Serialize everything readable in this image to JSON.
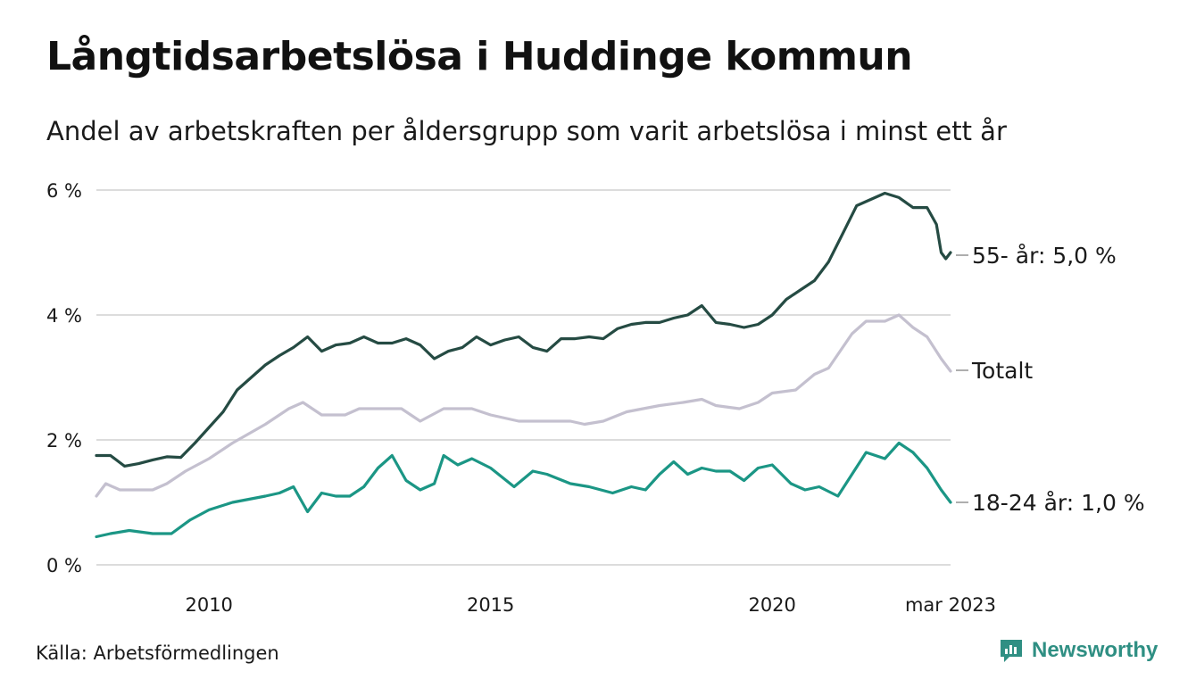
{
  "header": {
    "title": "Långtidsarbetslösa i Huddinge kommun",
    "subtitle": "Andel av arbetskraften per åldersgrupp som varit arbetslösa i minst ett år"
  },
  "footer": {
    "source": "Källa: Arbetsförmedlingen",
    "brand": "Newsworthy"
  },
  "colors": {
    "series_55": "#254b43",
    "series_total": "#c4c0cf",
    "series_18_24": "#1b9685",
    "grid": "#dcdcdc",
    "brand": "#2f8f83"
  },
  "chart_data": {
    "type": "line",
    "ylim": [
      0,
      6
    ],
    "yticks": [
      0,
      2,
      4,
      6
    ],
    "ytick_labels": [
      "0 %",
      "2 %",
      "4 %",
      "6 %"
    ],
    "xlim": [
      "2008-01",
      "2023-03"
    ],
    "xticks": [
      "2010-01",
      "2015-01",
      "2020-01",
      "2023-03"
    ],
    "xtick_labels": [
      "2010",
      "2015",
      "2020",
      "mar 2023"
    ],
    "grid": true,
    "series": [
      {
        "key": "age55",
        "end_label": "55- år: 5,0 %",
        "color": "#254b43",
        "points": [
          [
            "2008-01",
            1.75
          ],
          [
            "2008-04",
            1.75
          ],
          [
            "2008-07",
            1.58
          ],
          [
            "2008-10",
            1.62
          ],
          [
            "2009-01",
            1.68
          ],
          [
            "2009-04",
            1.73
          ],
          [
            "2009-07",
            1.72
          ],
          [
            "2009-10",
            1.95
          ],
          [
            "2010-01",
            2.2
          ],
          [
            "2010-04",
            2.45
          ],
          [
            "2010-07",
            2.8
          ],
          [
            "2010-10",
            3.0
          ],
          [
            "2011-01",
            3.2
          ],
          [
            "2011-04",
            3.35
          ],
          [
            "2011-07",
            3.48
          ],
          [
            "2011-10",
            3.65
          ],
          [
            "2012-01",
            3.42
          ],
          [
            "2012-04",
            3.52
          ],
          [
            "2012-07",
            3.55
          ],
          [
            "2012-10",
            3.65
          ],
          [
            "2013-01",
            3.55
          ],
          [
            "2013-04",
            3.55
          ],
          [
            "2013-07",
            3.62
          ],
          [
            "2013-10",
            3.52
          ],
          [
            "2014-01",
            3.3
          ],
          [
            "2014-04",
            3.42
          ],
          [
            "2014-07",
            3.48
          ],
          [
            "2014-10",
            3.65
          ],
          [
            "2015-01",
            3.52
          ],
          [
            "2015-04",
            3.6
          ],
          [
            "2015-07",
            3.65
          ],
          [
            "2015-10",
            3.48
          ],
          [
            "2016-01",
            3.42
          ],
          [
            "2016-04",
            3.62
          ],
          [
            "2016-07",
            3.62
          ],
          [
            "2016-10",
            3.65
          ],
          [
            "2017-01",
            3.62
          ],
          [
            "2017-04",
            3.78
          ],
          [
            "2017-07",
            3.85
          ],
          [
            "2017-10",
            3.88
          ],
          [
            "2018-01",
            3.88
          ],
          [
            "2018-04",
            3.95
          ],
          [
            "2018-07",
            4.0
          ],
          [
            "2018-10",
            4.15
          ],
          [
            "2019-01",
            3.88
          ],
          [
            "2019-04",
            3.85
          ],
          [
            "2019-07",
            3.8
          ],
          [
            "2019-10",
            3.85
          ],
          [
            "2020-01",
            4.0
          ],
          [
            "2020-04",
            4.25
          ],
          [
            "2020-07",
            4.4
          ],
          [
            "2020-10",
            4.55
          ],
          [
            "2021-01",
            4.85
          ],
          [
            "2021-04",
            5.3
          ],
          [
            "2021-07",
            5.75
          ],
          [
            "2021-10",
            5.85
          ],
          [
            "2022-01",
            5.95
          ],
          [
            "2022-04",
            5.88
          ],
          [
            "2022-07",
            5.72
          ],
          [
            "2022-10",
            5.72
          ],
          [
            "2022-12",
            5.45
          ],
          [
            "2023-01",
            5.0
          ],
          [
            "2023-02",
            4.9
          ],
          [
            "2023-03",
            5.0
          ]
        ]
      },
      {
        "key": "total",
        "end_label": "Totalt",
        "color": "#c4c0cf",
        "points": [
          [
            "2008-01",
            1.1
          ],
          [
            "2008-03",
            1.3
          ],
          [
            "2008-06",
            1.2
          ],
          [
            "2009-01",
            1.2
          ],
          [
            "2009-04",
            1.3
          ],
          [
            "2009-08",
            1.5
          ],
          [
            "2010-01",
            1.7
          ],
          [
            "2010-06",
            1.95
          ],
          [
            "2011-01",
            2.25
          ],
          [
            "2011-06",
            2.5
          ],
          [
            "2011-09",
            2.6
          ],
          [
            "2012-01",
            2.4
          ],
          [
            "2012-06",
            2.4
          ],
          [
            "2012-09",
            2.5
          ],
          [
            "2013-06",
            2.5
          ],
          [
            "2013-10",
            2.3
          ],
          [
            "2014-03",
            2.5
          ],
          [
            "2014-09",
            2.5
          ],
          [
            "2015-01",
            2.4
          ],
          [
            "2015-07",
            2.3
          ],
          [
            "2016-06",
            2.3
          ],
          [
            "2016-09",
            2.25
          ],
          [
            "2017-01",
            2.3
          ],
          [
            "2017-06",
            2.45
          ],
          [
            "2018-01",
            2.55
          ],
          [
            "2018-06",
            2.6
          ],
          [
            "2018-10",
            2.65
          ],
          [
            "2019-01",
            2.55
          ],
          [
            "2019-06",
            2.5
          ],
          [
            "2019-10",
            2.6
          ],
          [
            "2020-01",
            2.75
          ],
          [
            "2020-06",
            2.8
          ],
          [
            "2020-10",
            3.05
          ],
          [
            "2021-01",
            3.15
          ],
          [
            "2021-06",
            3.7
          ],
          [
            "2021-09",
            3.9
          ],
          [
            "2022-01",
            3.9
          ],
          [
            "2022-04",
            4.0
          ],
          [
            "2022-07",
            3.8
          ],
          [
            "2022-10",
            3.65
          ],
          [
            "2023-01",
            3.3
          ],
          [
            "2023-03",
            3.1
          ]
        ]
      },
      {
        "key": "age18_24",
        "end_label": "18-24 år: 1,0 %",
        "color": "#1b9685",
        "points": [
          [
            "2008-01",
            0.45
          ],
          [
            "2008-04",
            0.5
          ],
          [
            "2008-08",
            0.55
          ],
          [
            "2009-01",
            0.5
          ],
          [
            "2009-05",
            0.5
          ],
          [
            "2009-09",
            0.72
          ],
          [
            "2010-01",
            0.88
          ],
          [
            "2010-06",
            1.0
          ],
          [
            "2011-01",
            1.1
          ],
          [
            "2011-04",
            1.15
          ],
          [
            "2011-07",
            1.25
          ],
          [
            "2011-10",
            0.85
          ],
          [
            "2012-01",
            1.15
          ],
          [
            "2012-04",
            1.1
          ],
          [
            "2012-07",
            1.1
          ],
          [
            "2012-10",
            1.25
          ],
          [
            "2013-01",
            1.55
          ],
          [
            "2013-04",
            1.75
          ],
          [
            "2013-07",
            1.35
          ],
          [
            "2013-10",
            1.2
          ],
          [
            "2014-01",
            1.3
          ],
          [
            "2014-03",
            1.75
          ],
          [
            "2014-06",
            1.6
          ],
          [
            "2014-09",
            1.7
          ],
          [
            "2015-01",
            1.55
          ],
          [
            "2015-06",
            1.25
          ],
          [
            "2015-10",
            1.5
          ],
          [
            "2016-01",
            1.45
          ],
          [
            "2016-06",
            1.3
          ],
          [
            "2016-10",
            1.25
          ],
          [
            "2017-03",
            1.15
          ],
          [
            "2017-07",
            1.25
          ],
          [
            "2017-10",
            1.2
          ],
          [
            "2018-01",
            1.45
          ],
          [
            "2018-04",
            1.65
          ],
          [
            "2018-07",
            1.45
          ],
          [
            "2018-10",
            1.55
          ],
          [
            "2019-01",
            1.5
          ],
          [
            "2019-04",
            1.5
          ],
          [
            "2019-07",
            1.35
          ],
          [
            "2019-10",
            1.55
          ],
          [
            "2020-01",
            1.6
          ],
          [
            "2020-05",
            1.3
          ],
          [
            "2020-08",
            1.2
          ],
          [
            "2020-11",
            1.25
          ],
          [
            "2021-03",
            1.1
          ],
          [
            "2021-06",
            1.45
          ],
          [
            "2021-09",
            1.8
          ],
          [
            "2022-01",
            1.7
          ],
          [
            "2022-04",
            1.95
          ],
          [
            "2022-07",
            1.8
          ],
          [
            "2022-10",
            1.55
          ],
          [
            "2023-01",
            1.2
          ],
          [
            "2023-03",
            1.0
          ]
        ]
      }
    ]
  }
}
